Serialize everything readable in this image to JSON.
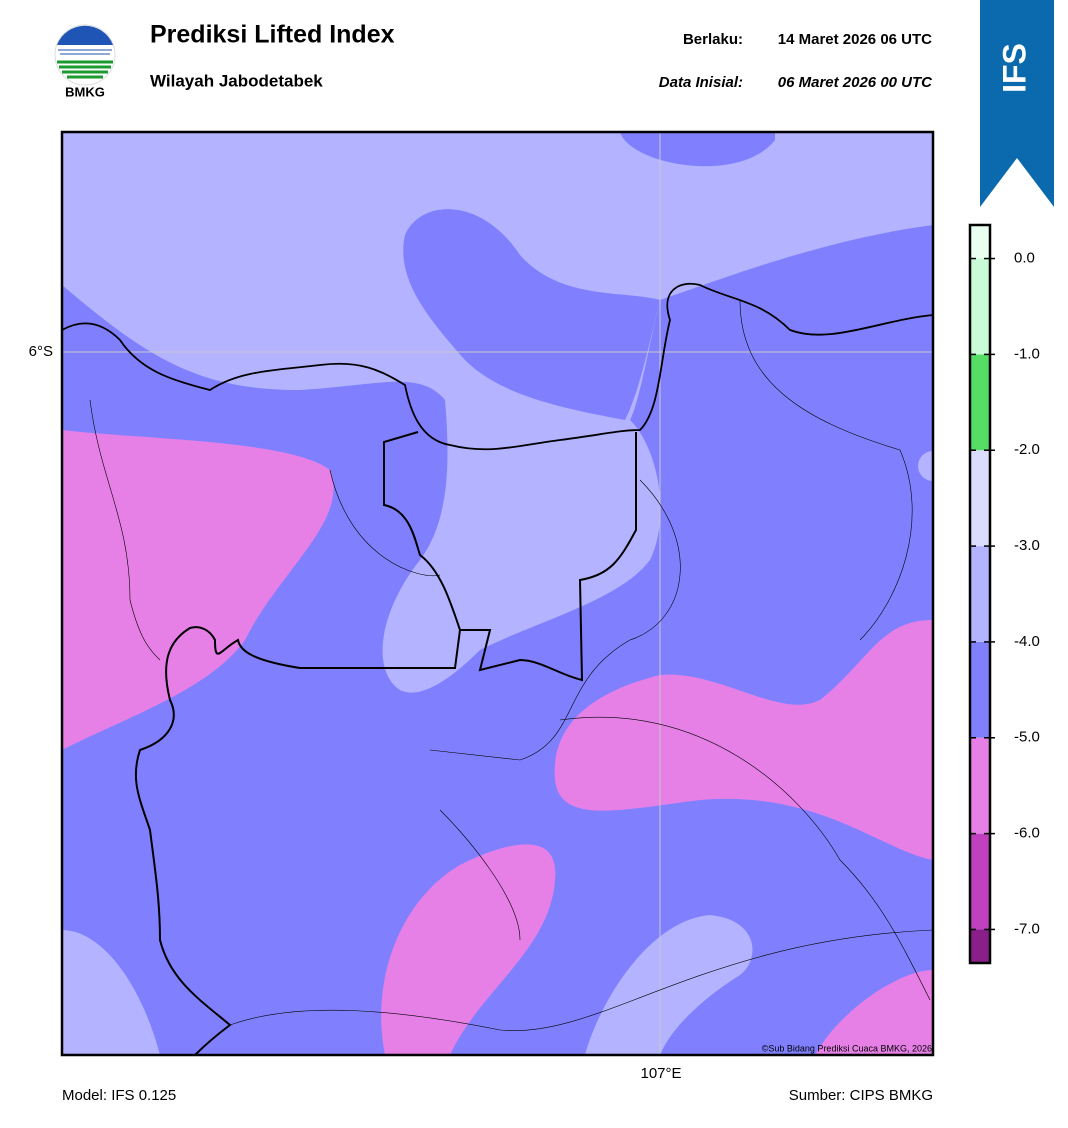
{
  "header": {
    "logo_text": "BMKG",
    "title": "Prediksi Lifted Index",
    "subtitle": "Wilayah Jabodetabek",
    "valid_label": "Berlaku:",
    "valid_date": "14 Maret 2026 06 UTC",
    "init_label": "Data Inisial:",
    "init_date": "06 Maret 2026 00 UTC",
    "badge": "IFS"
  },
  "map": {
    "lat_label": "6°S",
    "lon_label": "107°E",
    "copyright": "©Sub Bidang Prediksi Cuaca BMKG, 2026"
  },
  "colorbar": {
    "range": [
      -7.35,
      0.35
    ],
    "boundaries": [
      -7.35,
      -7,
      -6,
      -5,
      -4,
      -3,
      -2,
      -1,
      0,
      0.35
    ],
    "colors": [
      "#8a1f8a",
      "#c040c0",
      "#e680e6",
      "#8080ff",
      "#b3b3ff",
      "#dcdcff",
      "#55dd66",
      "#c8fbd6",
      "#e9fff0"
    ],
    "ticks": [
      {
        "value": 0,
        "label": "0.0"
      },
      {
        "value": -1,
        "label": "-1.0"
      },
      {
        "value": -2,
        "label": "-2.0"
      },
      {
        "value": -3,
        "label": "-3.0"
      },
      {
        "value": -4,
        "label": "-4.0"
      },
      {
        "value": -5,
        "label": "-5.0"
      },
      {
        "value": -6,
        "label": "-6.0"
      },
      {
        "value": -7,
        "label": "-7.0"
      }
    ]
  },
  "footer": {
    "model": "Model: IFS 0.125",
    "source": "Sumber: CIPS BMKG"
  }
}
